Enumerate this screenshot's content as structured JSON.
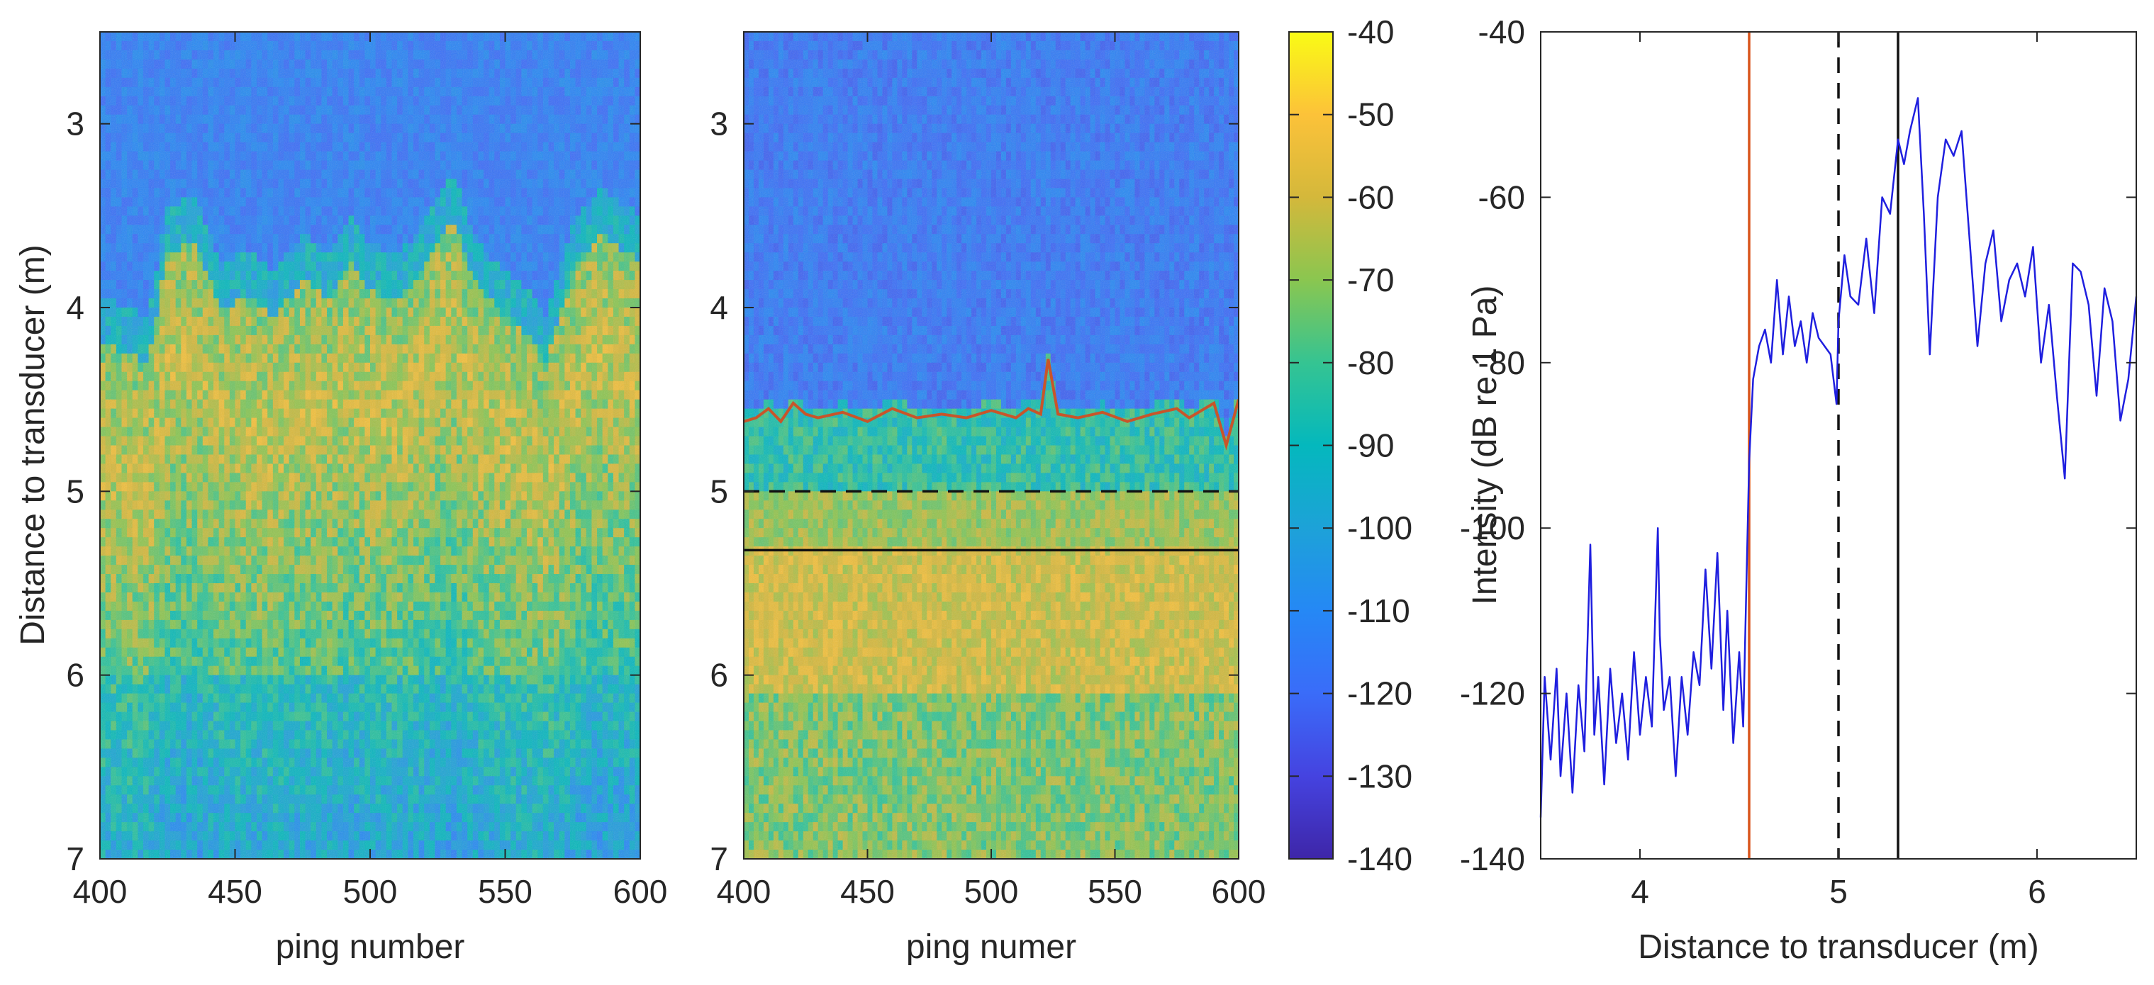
{
  "chart_data": [
    {
      "type": "heatmap",
      "panel": "left",
      "title": "",
      "xlabel": "ping number",
      "ylabel": "Distance to transducer (m)",
      "xlim": [
        400,
        600
      ],
      "ylim": [
        2.5,
        7
      ],
      "y_reversed": true,
      "xticks": [
        400,
        450,
        500,
        550,
        600
      ],
      "yticks": [
        3,
        4,
        5,
        6,
        7
      ],
      "color_scale": "parula",
      "clim": [
        -140,
        -40
      ],
      "colorbar": false,
      "bottom_edge_depth_profile": {
        "ping": [
          400,
          410,
          418,
          425,
          435,
          445,
          455,
          465,
          475,
          485,
          492,
          500,
          510,
          520,
          530,
          540,
          550,
          558,
          565,
          575,
          585,
          600
        ],
        "depth_m": [
          4.1,
          4.15,
          4.2,
          3.6,
          3.55,
          3.9,
          3.85,
          3.95,
          3.75,
          3.85,
          3.65,
          3.8,
          3.85,
          3.7,
          3.4,
          3.8,
          3.95,
          4.05,
          4.2,
          3.7,
          3.5,
          3.65
        ]
      },
      "high_intensity_band_m": [
        4.4,
        5.4
      ]
    },
    {
      "type": "heatmap",
      "panel": "middle",
      "title": "",
      "xlabel": "ping numer",
      "ylabel": "",
      "xlim": [
        400,
        600
      ],
      "ylim": [
        2.5,
        7
      ],
      "y_reversed": true,
      "xticks": [
        400,
        450,
        500,
        550,
        600
      ],
      "yticks": [
        3,
        4,
        5,
        6,
        7
      ],
      "color_scale": "parula",
      "clim": [
        -140,
        -40
      ],
      "overlays": [
        {
          "name": "detected bottom",
          "style": "solid",
          "color": "#c8552a",
          "ping": [
            400,
            405,
            410,
            415,
            420,
            425,
            430,
            440,
            450,
            460,
            470,
            480,
            490,
            500,
            510,
            515,
            520,
            523,
            527,
            535,
            545,
            555,
            565,
            575,
            580,
            590,
            595,
            600
          ],
          "depth_m": [
            4.62,
            4.6,
            4.55,
            4.62,
            4.52,
            4.58,
            4.6,
            4.57,
            4.62,
            4.55,
            4.6,
            4.58,
            4.6,
            4.56,
            4.6,
            4.55,
            4.58,
            4.28,
            4.58,
            4.6,
            4.57,
            4.62,
            4.58,
            4.55,
            4.6,
            4.52,
            4.75,
            4.5
          ]
        },
        {
          "name": "dashed reference",
          "style": "dashed",
          "color": "#111111",
          "depth_m": 5.0
        },
        {
          "name": "solid reference",
          "style": "solid",
          "color": "#111111",
          "depth_m": 5.32
        }
      ],
      "colorbar": {
        "min": -140,
        "max": -40,
        "ticks": [
          -40,
          -50,
          -60,
          -70,
          -80,
          -90,
          -100,
          -110,
          -120,
          -130,
          -140
        ]
      }
    },
    {
      "type": "line",
      "panel": "right",
      "title": "",
      "xlabel": "Distance to transducer (m)",
      "ylabel": "Intensity (dB re 1 Pa)",
      "xlim": [
        3.5,
        6.5
      ],
      "ylim": [
        -140,
        -40
      ],
      "xticks": [
        4,
        5,
        6
      ],
      "yticks": [
        -40,
        -60,
        -80,
        -100,
        -120,
        -140
      ],
      "series": [
        {
          "name": "intensity",
          "color": "#1f1fdf",
          "x": [
            3.5,
            3.52,
            3.55,
            3.58,
            3.6,
            3.63,
            3.66,
            3.69,
            3.72,
            3.75,
            3.77,
            3.79,
            3.82,
            3.85,
            3.88,
            3.91,
            3.94,
            3.97,
            4.0,
            4.03,
            4.06,
            4.09,
            4.1,
            4.12,
            4.15,
            4.18,
            4.21,
            4.24,
            4.27,
            4.3,
            4.33,
            4.36,
            4.39,
            4.42,
            4.44,
            4.47,
            4.5,
            4.52,
            4.55,
            4.57,
            4.6,
            4.63,
            4.66,
            4.69,
            4.72,
            4.75,
            4.78,
            4.81,
            4.84,
            4.87,
            4.9,
            4.93,
            4.96,
            4.99,
            5.0,
            5.03,
            5.06,
            5.1,
            5.14,
            5.18,
            5.22,
            5.26,
            5.3,
            5.33,
            5.36,
            5.4,
            5.43,
            5.46,
            5.5,
            5.54,
            5.58,
            5.62,
            5.66,
            5.7,
            5.74,
            5.78,
            5.82,
            5.86,
            5.9,
            5.94,
            5.98,
            6.02,
            6.06,
            6.1,
            6.14,
            6.18,
            6.22,
            6.26,
            6.3,
            6.34,
            6.38,
            6.42,
            6.46,
            6.5
          ],
          "y": [
            -135,
            -118,
            -128,
            -117,
            -130,
            -120,
            -132,
            -119,
            -127,
            -102,
            -125,
            -118,
            -131,
            -117,
            -126,
            -120,
            -128,
            -115,
            -125,
            -118,
            -124,
            -100,
            -113,
            -122,
            -118,
            -130,
            -118,
            -125,
            -115,
            -119,
            -105,
            -117,
            -103,
            -122,
            -110,
            -126,
            -115,
            -124,
            -92,
            -82,
            -78,
            -76,
            -80,
            -70,
            -79,
            -72,
            -78,
            -75,
            -80,
            -74,
            -77,
            -78,
            -79,
            -85,
            -75,
            -67,
            -72,
            -73,
            -65,
            -74,
            -60,
            -62,
            -53,
            -56,
            -52,
            -48,
            -62,
            -79,
            -60,
            -53,
            -55,
            -52,
            -65,
            -78,
            -68,
            -64,
            -75,
            -70,
            -68,
            -72,
            -66,
            -80,
            -73,
            -84,
            -94,
            -68,
            -69,
            -73,
            -84,
            -71,
            -75,
            -87,
            -82,
            -72
          ]
        }
      ],
      "vertical_lines": [
        {
          "name": "detected bottom",
          "x": 4.55,
          "style": "solid",
          "color": "#d9541a"
        },
        {
          "name": "dashed reference",
          "x": 5.0,
          "style": "dashed",
          "color": "#111111"
        },
        {
          "name": "solid reference",
          "x": 5.3,
          "style": "solid",
          "color": "#111111"
        }
      ]
    }
  ]
}
